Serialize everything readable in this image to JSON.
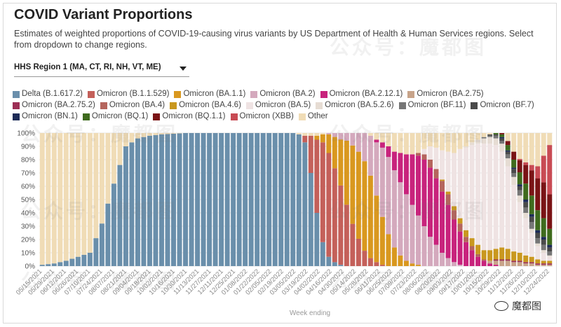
{
  "header": {
    "title": "COVID Variant Proportions",
    "subtitle": "Estimates of weighted proportions of COVID-19-causing virus variants by US Department of Health & Human Services regions. Select from dropdown to change regions."
  },
  "region_select": {
    "value": "HHS Region 1 (MA, CT, RI, NH, VT, ME)"
  },
  "watermark": {
    "text": "公众号：魔都图",
    "badge": "魔都图"
  },
  "chart_data": {
    "type": "stacked_bar",
    "title": "COVID Variant Proportions",
    "xlabel": "Week ending",
    "ylabel": "",
    "ylim": [
      0,
      100
    ],
    "y_ticks": [
      "0%",
      "10%",
      "20%",
      "30%",
      "40%",
      "50%",
      "60%",
      "70%",
      "80%",
      "90%",
      "100%"
    ],
    "x_tick_labels": [
      "05/15/2021",
      "05/29/2021",
      "06/12/2021",
      "06/26/2021",
      "07/10/2021",
      "07/24/2021",
      "08/07/2021",
      "08/21/2021",
      "09/04/2021",
      "09/18/2021",
      "10/02/2021",
      "10/16/2021",
      "10/30/2021",
      "11/13/2021",
      "11/27/2021",
      "12/11/2021",
      "12/25/2021",
      "01/08/2022",
      "01/22/2022",
      "02/05/2022",
      "02/19/2022",
      "03/05/2022",
      "03/19/2022",
      "04/02/2022",
      "04/16/2022",
      "04/30/2022",
      "05/14/2022",
      "05/28/2022",
      "06/11/2022",
      "06/25/2022",
      "07/09/2022",
      "07/23/2022",
      "08/06/2022",
      "08/20/2022",
      "09/03/2022",
      "09/17/2022",
      "10/01/2022",
      "10/15/2022",
      "10/29/2022",
      "11/12/2022",
      "11/26/2022",
      "12/10/2022",
      "12/24/2022"
    ],
    "week_count": 86,
    "series": [
      {
        "name": "Delta (B.1.617.2)",
        "color": "#6a8fab",
        "points": [
          [
            0,
            1
          ],
          [
            2,
            2
          ],
          [
            4,
            4
          ],
          [
            6,
            7
          ],
          [
            8,
            10
          ],
          [
            10,
            32
          ],
          [
            12,
            62
          ],
          [
            14,
            90
          ],
          [
            16,
            96
          ],
          [
            18,
            98
          ],
          [
            20,
            99
          ],
          [
            24,
            100
          ],
          [
            42,
            100
          ],
          [
            43,
            99
          ],
          [
            44,
            93
          ],
          [
            45,
            70
          ],
          [
            46,
            40
          ],
          [
            47,
            18
          ],
          [
            48,
            7
          ],
          [
            49,
            3
          ],
          [
            50,
            1
          ],
          [
            51,
            0
          ]
        ]
      },
      {
        "name": "Omicron (B.1.1.529)",
        "color": "#c4605a",
        "points": [
          [
            43,
            0
          ],
          [
            44,
            5
          ],
          [
            45,
            28
          ],
          [
            46,
            55
          ],
          [
            47,
            75
          ],
          [
            48,
            78
          ],
          [
            49,
            72
          ],
          [
            50,
            62
          ],
          [
            51,
            48
          ],
          [
            52,
            34
          ],
          [
            53,
            22
          ],
          [
            54,
            12
          ],
          [
            55,
            6
          ],
          [
            56,
            3
          ],
          [
            57,
            1
          ],
          [
            58,
            0
          ]
        ]
      },
      {
        "name": "Omicron (BA.1.1)",
        "color": "#d9981f",
        "points": [
          [
            45,
            0
          ],
          [
            46,
            3
          ],
          [
            47,
            6
          ],
          [
            48,
            14
          ],
          [
            49,
            24
          ],
          [
            50,
            36
          ],
          [
            51,
            50
          ],
          [
            52,
            63
          ],
          [
            53,
            70
          ],
          [
            54,
            70
          ],
          [
            55,
            62
          ],
          [
            56,
            50
          ],
          [
            57,
            36
          ],
          [
            58,
            24
          ],
          [
            59,
            14
          ],
          [
            60,
            8
          ],
          [
            61,
            4
          ],
          [
            62,
            2
          ],
          [
            63,
            1
          ],
          [
            64,
            0
          ]
        ]
      },
      {
        "name": "Omicron (BA.2)",
        "color": "#d4a9bd",
        "points": [
          [
            47,
            0
          ],
          [
            48,
            1
          ],
          [
            49,
            3
          ],
          [
            50,
            5
          ],
          [
            51,
            6
          ],
          [
            52,
            10
          ],
          [
            53,
            15
          ],
          [
            54,
            22
          ],
          [
            55,
            30
          ],
          [
            56,
            40
          ],
          [
            57,
            52
          ],
          [
            58,
            58
          ],
          [
            59,
            58
          ],
          [
            60,
            55
          ],
          [
            61,
            50
          ],
          [
            62,
            44
          ],
          [
            63,
            37
          ],
          [
            64,
            30
          ],
          [
            65,
            22
          ],
          [
            66,
            16
          ],
          [
            67,
            10
          ],
          [
            68,
            6
          ],
          [
            69,
            3
          ],
          [
            70,
            1
          ],
          [
            71,
            0
          ]
        ]
      },
      {
        "name": "Omicron (BA.2.12.1)",
        "color": "#c8237c",
        "points": [
          [
            55,
            0
          ],
          [
            56,
            2
          ],
          [
            57,
            4
          ],
          [
            58,
            8
          ],
          [
            59,
            14
          ],
          [
            60,
            22
          ],
          [
            61,
            30
          ],
          [
            62,
            38
          ],
          [
            63,
            45
          ],
          [
            64,
            50
          ],
          [
            65,
            52
          ],
          [
            66,
            50
          ],
          [
            67,
            46
          ],
          [
            68,
            40
          ],
          [
            69,
            32
          ],
          [
            70,
            25
          ],
          [
            71,
            18
          ],
          [
            72,
            12
          ],
          [
            73,
            7
          ],
          [
            74,
            4
          ],
          [
            75,
            2
          ],
          [
            76,
            1
          ],
          [
            77,
            0
          ]
        ]
      },
      {
        "name": "Omicron (BA.2.75)",
        "color": "#c8a48a",
        "points": [
          [
            74,
            0
          ],
          [
            75,
            2
          ],
          [
            76,
            3
          ],
          [
            77,
            4
          ],
          [
            78,
            4
          ],
          [
            79,
            3
          ],
          [
            80,
            3
          ],
          [
            81,
            2
          ],
          [
            82,
            2
          ],
          [
            83,
            1
          ],
          [
            85,
            1
          ]
        ]
      },
      {
        "name": "Omicron (BA.2.75.2)",
        "color": "#9c2f55",
        "points": [
          [
            75,
            0
          ],
          [
            76,
            1
          ],
          [
            78,
            1
          ],
          [
            80,
            1
          ],
          [
            82,
            1
          ],
          [
            84,
            1
          ],
          [
            85,
            1
          ]
        ]
      },
      {
        "name": "Omicron (BA.4)",
        "color": "#b5655d",
        "points": [
          [
            62,
            0
          ],
          [
            63,
            2
          ],
          [
            64,
            4
          ],
          [
            65,
            6
          ],
          [
            66,
            7
          ],
          [
            67,
            8
          ],
          [
            68,
            8
          ],
          [
            69,
            7
          ],
          [
            70,
            6
          ],
          [
            71,
            4
          ],
          [
            72,
            3
          ],
          [
            73,
            2
          ],
          [
            74,
            1
          ],
          [
            75,
            0
          ]
        ]
      },
      {
        "name": "Omicron (BA.4.6)",
        "color": "#c9981f",
        "points": [
          [
            66,
            0
          ],
          [
            67,
            1
          ],
          [
            68,
            2
          ],
          [
            69,
            3
          ],
          [
            70,
            4
          ],
          [
            71,
            5
          ],
          [
            72,
            6
          ],
          [
            73,
            7
          ],
          [
            74,
            7
          ],
          [
            75,
            8
          ],
          [
            76,
            8
          ],
          [
            77,
            9
          ],
          [
            78,
            8
          ],
          [
            79,
            7
          ],
          [
            80,
            6
          ],
          [
            81,
            5
          ],
          [
            82,
            4
          ],
          [
            83,
            3
          ],
          [
            84,
            2
          ],
          [
            85,
            2
          ]
        ]
      },
      {
        "name": "Omicron (BA.5)",
        "color": "#efe3e3",
        "points": [
          [
            63,
            0
          ],
          [
            64,
            4
          ],
          [
            65,
            10
          ],
          [
            66,
            16
          ],
          [
            67,
            22
          ],
          [
            68,
            30
          ],
          [
            69,
            40
          ],
          [
            70,
            52
          ],
          [
            71,
            62
          ],
          [
            72,
            70
          ],
          [
            73,
            76
          ],
          [
            74,
            80
          ],
          [
            75,
            80
          ],
          [
            76,
            78
          ],
          [
            77,
            72
          ],
          [
            78,
            62
          ],
          [
            79,
            50
          ],
          [
            80,
            38
          ],
          [
            81,
            28
          ],
          [
            82,
            18
          ],
          [
            83,
            10
          ],
          [
            84,
            6
          ],
          [
            85,
            3
          ]
        ]
      },
      {
        "name": "Omicron (BA.5.2.6)",
        "color": "#e6dcd3",
        "points": [
          [
            70,
            0
          ],
          [
            71,
            1
          ],
          [
            72,
            2
          ],
          [
            73,
            3
          ],
          [
            74,
            4
          ],
          [
            75,
            5
          ],
          [
            76,
            5
          ],
          [
            77,
            6
          ],
          [
            78,
            6
          ],
          [
            79,
            6
          ],
          [
            80,
            5
          ],
          [
            81,
            4
          ],
          [
            82,
            3
          ],
          [
            83,
            2
          ],
          [
            84,
            2
          ],
          [
            85,
            1
          ]
        ]
      },
      {
        "name": "Omicron (BF.11)",
        "color": "#767676",
        "points": [
          [
            73,
            0
          ],
          [
            74,
            1
          ],
          [
            75,
            1
          ],
          [
            76,
            2
          ],
          [
            77,
            2
          ],
          [
            78,
            3
          ],
          [
            79,
            3
          ],
          [
            80,
            4
          ],
          [
            81,
            4
          ],
          [
            82,
            5
          ],
          [
            83,
            4
          ],
          [
            84,
            4
          ],
          [
            85,
            3
          ]
        ]
      },
      {
        "name": "Omicron (BF.7)",
        "color": "#4a4a4a",
        "points": [
          [
            74,
            0
          ],
          [
            75,
            1
          ],
          [
            76,
            1
          ],
          [
            77,
            2
          ],
          [
            78,
            2
          ],
          [
            79,
            3
          ],
          [
            80,
            3
          ],
          [
            81,
            4
          ],
          [
            82,
            4
          ],
          [
            83,
            4
          ],
          [
            84,
            4
          ],
          [
            85,
            3
          ]
        ]
      },
      {
        "name": "Omicron (BN.1)",
        "color": "#1d2b57",
        "points": [
          [
            76,
            0
          ],
          [
            77,
            1
          ],
          [
            79,
            1
          ],
          [
            81,
            2
          ],
          [
            83,
            2
          ],
          [
            85,
            2
          ]
        ]
      },
      {
        "name": "Omicron (BQ.1)",
        "color": "#3f6b1e",
        "points": [
          [
            75,
            0
          ],
          [
            76,
            1
          ],
          [
            77,
            2
          ],
          [
            78,
            4
          ],
          [
            79,
            6
          ],
          [
            80,
            9
          ],
          [
            81,
            12
          ],
          [
            82,
            14
          ],
          [
            83,
            15
          ],
          [
            84,
            14
          ],
          [
            85,
            12
          ]
        ]
      },
      {
        "name": "Omicron (BQ.1.1)",
        "color": "#7a1416",
        "points": [
          [
            76,
            0
          ],
          [
            77,
            1
          ],
          [
            78,
            3
          ],
          [
            79,
            6
          ],
          [
            80,
            9
          ],
          [
            81,
            14
          ],
          [
            82,
            19
          ],
          [
            83,
            24
          ],
          [
            84,
            27
          ],
          [
            85,
            26
          ]
        ]
      },
      {
        "name": "Omicron (XBB)",
        "color": "#c84b54",
        "points": [
          [
            79,
            0
          ],
          [
            80,
            1
          ],
          [
            81,
            2
          ],
          [
            82,
            4
          ],
          [
            83,
            9
          ],
          [
            84,
            20
          ],
          [
            85,
            37
          ]
        ]
      },
      {
        "name": "Other",
        "color": "#f0dcb6",
        "remainder": true
      }
    ]
  }
}
